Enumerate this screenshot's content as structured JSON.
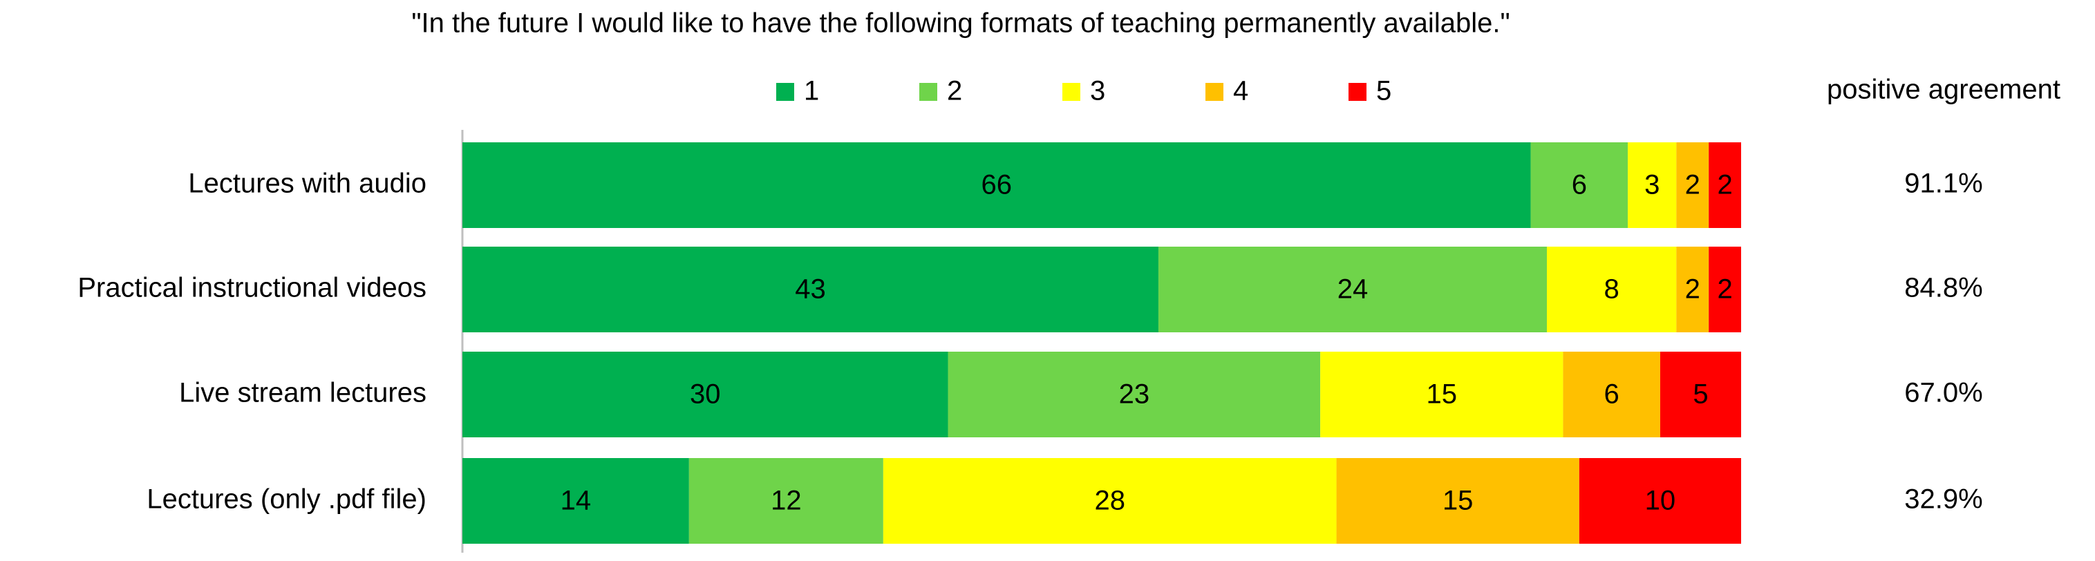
{
  "chart_data": {
    "type": "stacked-bar-horizontal",
    "title": "\"In the future I would like to have the following formats of teaching permanently available.\"",
    "categories": [
      "Lectures with audio",
      "Practical instructional videos",
      "Live stream lectures",
      "Lectures (only .pdf file)"
    ],
    "series": [
      {
        "name": "1",
        "color": "#00b050",
        "values": [
          66,
          43,
          30,
          14
        ]
      },
      {
        "name": "2",
        "color": "#6fd44a",
        "values": [
          6,
          24,
          23,
          12
        ]
      },
      {
        "name": "3",
        "color": "#ffff00",
        "values": [
          3,
          8,
          15,
          28
        ]
      },
      {
        "name": "4",
        "color": "#ffc000",
        "values": [
          2,
          2,
          6,
          15
        ]
      },
      {
        "name": "5",
        "color": "#ff0000",
        "values": [
          2,
          2,
          5,
          10
        ]
      }
    ],
    "xlim": [
      0,
      79
    ],
    "agreement_title": "positive agreement",
    "agreement_labels": [
      "91.1%",
      "84.8%",
      "67.0%",
      "32.9%"
    ]
  }
}
